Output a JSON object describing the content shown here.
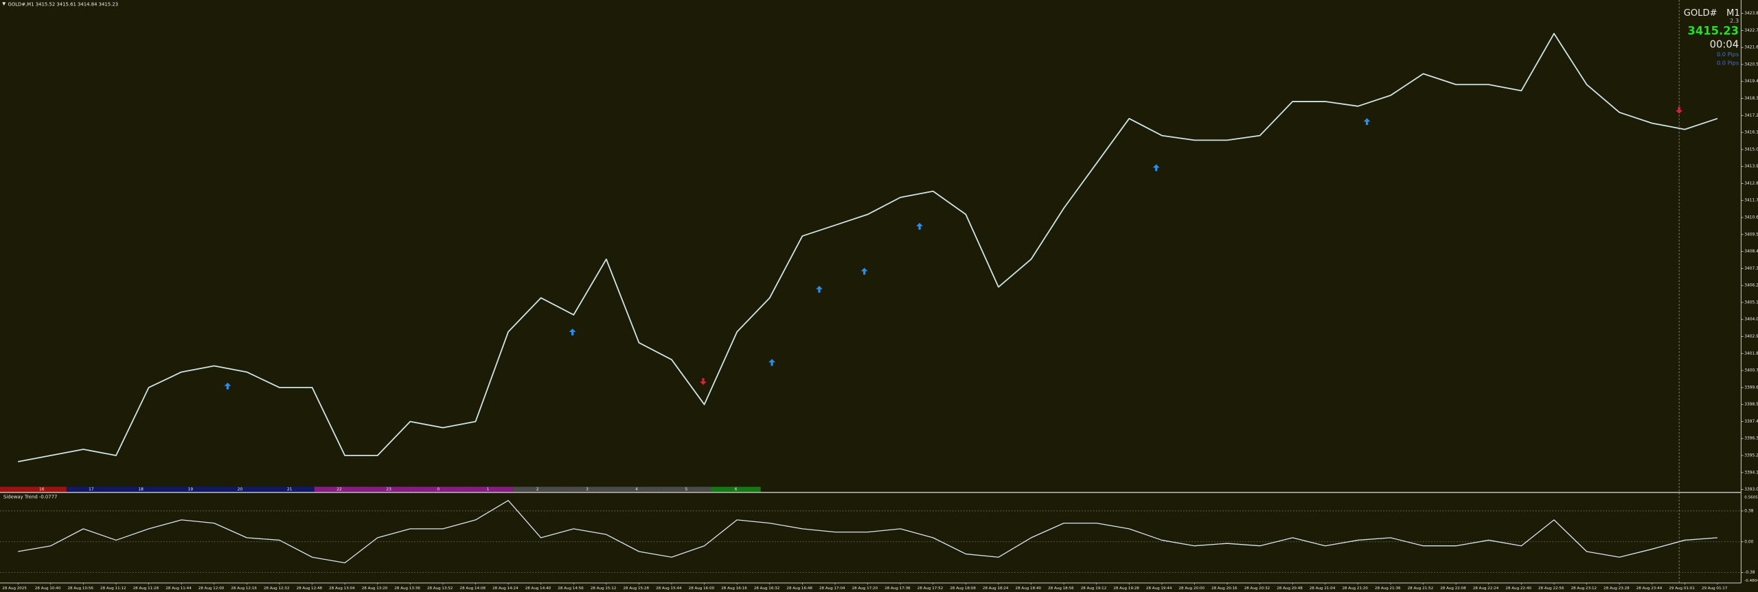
{
  "header": {
    "title": "GOLD#,M1  3415.52 3415.61 3414.84 3415.23"
  },
  "info_panel": {
    "symbol": "GOLD#",
    "period": "M1",
    "spread": "2.3",
    "price": "3415.23",
    "timer": "00:04",
    "pips": [
      "0.0 Pips",
      "0.0 Pips"
    ]
  },
  "hour_bar": [
    {
      "label": "16",
      "color": "#a01010"
    },
    {
      "label": "17",
      "color": "#10186a"
    },
    {
      "label": "18",
      "color": "#10186a"
    },
    {
      "label": "19",
      "color": "#10186a"
    },
    {
      "label": "20",
      "color": "#10186a"
    },
    {
      "label": "21",
      "color": "#10186a"
    },
    {
      "label": "22",
      "color": "#8a1a86"
    },
    {
      "label": "23",
      "color": "#8a1a86"
    },
    {
      "label": "0",
      "color": "#8a1a86"
    },
    {
      "label": "1",
      "color": "#8a1a86"
    },
    {
      "label": "2",
      "color": "#4a4a4a"
    },
    {
      "label": "3",
      "color": "#4a4a4a"
    },
    {
      "label": "4",
      "color": "#4a4a4a"
    },
    {
      "label": "5",
      "color": "#4a4a4a"
    },
    {
      "label": "6",
      "color": "#137a13"
    }
  ],
  "chart_data": [
    {
      "type": "line",
      "color": "#cfe6e6",
      "grid": false,
      "categories": [
        "28 Aug 2025",
        "28 Aug 10:40",
        "28 Aug 10:56",
        "28 Aug 11:12",
        "28 Aug 11:28",
        "28 Aug 11:44",
        "28 Aug 12:00",
        "28 Aug 12:16",
        "28 Aug 12:32",
        "28 Aug 12:48",
        "28 Aug 13:04",
        "28 Aug 13:20",
        "28 Aug 13:36",
        "28 Aug 13:52",
        "28 Aug 14:08",
        "28 Aug 14:24",
        "28 Aug 14:40",
        "28 Aug 14:56",
        "28 Aug 15:12",
        "28 Aug 15:28",
        "28 Aug 15:44",
        "28 Aug 16:00",
        "28 Aug 16:16",
        "28 Aug 16:32",
        "28 Aug 16:48",
        "28 Aug 17:04",
        "28 Aug 17:20",
        "28 Aug 17:36",
        "28 Aug 17:52",
        "28 Aug 18:08",
        "28 Aug 18:24",
        "28 Aug 18:40",
        "28 Aug 18:56",
        "28 Aug 19:12",
        "28 Aug 19:28",
        "28 Aug 19:44",
        "28 Aug 20:00",
        "28 Aug 20:16",
        "28 Aug 20:32",
        "28 Aug 20:48",
        "28 Aug 21:04",
        "28 Aug 21:20",
        "28 Aug 21:36",
        "28 Aug 21:52",
        "28 Aug 22:08",
        "28 Aug 22:24",
        "28 Aug 22:40",
        "28 Aug 22:56",
        "28 Aug 23:12",
        "28 Aug 23:28",
        "28 Aug 23:44",
        "29 Aug 01:01",
        "29 Aug 01:17"
      ],
      "values": [
        3394.8,
        3395.2,
        3395.6,
        3395.2,
        3399.6,
        3400.6,
        3401.0,
        3400.6,
        3399.6,
        3399.6,
        3395.2,
        3395.2,
        3397.4,
        3397.0,
        3397.4,
        3403.2,
        3405.4,
        3404.3,
        3407.9,
        3402.5,
        3401.4,
        3398.5,
        3403.2,
        3405.4,
        3409.4,
        3410.1,
        3410.8,
        3411.9,
        3412.3,
        3410.8,
        3406.1,
        3407.9,
        3411.2,
        3414.1,
        3417.0,
        3415.9,
        3415.6,
        3415.6,
        3415.9,
        3418.1,
        3418.1,
        3417.8,
        3418.5,
        3419.9,
        3419.2,
        3419.2,
        3418.8,
        3422.5,
        3419.2,
        3417.4,
        3416.7,
        3416.3,
        3417.0
      ],
      "ylim": [
        3392.85,
        3424.67
      ],
      "yticks": [
        {
          "value": 3423.8,
          "label": "3423.80"
        },
        {
          "value": 3422.7,
          "label": "3422.70"
        },
        {
          "value": 3421.6,
          "label": "3421.60"
        },
        {
          "value": 3420.5,
          "label": "3420.50"
        },
        {
          "value": 3419.4,
          "label": "3419.40"
        },
        {
          "value": 3418.3,
          "label": "3418.30"
        },
        {
          "value": 3417.2,
          "label": "3417.20"
        },
        {
          "value": 3416.1,
          "label": "3416.10"
        },
        {
          "value": 3415.0,
          "label": "3415.00"
        },
        {
          "value": 3413.9,
          "label": "3413.90"
        },
        {
          "value": 3412.8,
          "label": "3412.80"
        },
        {
          "value": 3411.7,
          "label": "3411.70"
        },
        {
          "value": 3410.6,
          "label": "3410.60"
        },
        {
          "value": 3409.5,
          "label": "3409.50"
        },
        {
          "value": 3408.4,
          "label": "3408.40"
        },
        {
          "value": 3407.3,
          "label": "3407.30"
        },
        {
          "value": 3406.2,
          "label": "3406.20"
        },
        {
          "value": 3405.1,
          "label": "3405.10"
        },
        {
          "value": 3404.0,
          "label": "3404.00"
        },
        {
          "value": 3402.9,
          "label": "3402.90"
        },
        {
          "value": 3401.8,
          "label": "3401.80"
        },
        {
          "value": 3400.7,
          "label": "3400.70"
        },
        {
          "value": 3399.6,
          "label": "3399.60"
        },
        {
          "value": 3398.5,
          "label": "3398.50"
        },
        {
          "value": 3397.4,
          "label": "3397.40"
        },
        {
          "value": 3396.3,
          "label": "3396.30"
        },
        {
          "value": 3395.2,
          "label": "3395.20"
        },
        {
          "value": 3394.1,
          "label": "3394.10"
        },
        {
          "value": 3393.0,
          "label": "3393.00"
        }
      ]
    },
    {
      "type": "line",
      "title": "Sideway Trend -0.0777",
      "color": "#d8e6f0",
      "grid": true,
      "values": [
        -0.12,
        -0.05,
        0.16,
        0.02,
        0.16,
        0.27,
        0.23,
        0.05,
        0.02,
        -0.19,
        -0.26,
        0.05,
        0.16,
        0.16,
        0.27,
        0.51,
        0.05,
        0.16,
        0.09,
        -0.12,
        -0.19,
        -0.05,
        0.27,
        0.23,
        0.16,
        0.12,
        0.12,
        0.16,
        0.05,
        -0.15,
        -0.19,
        0.05,
        0.23,
        0.23,
        0.16,
        0.02,
        -0.05,
        -0.02,
        -0.05,
        0.05,
        -0.05,
        0.02,
        0.05,
        -0.05,
        -0.05,
        0.02,
        -0.05,
        0.27,
        -0.12,
        -0.19,
        -0.09,
        0.02,
        0.05
      ],
      "ylim": [
        -0.4804,
        0.5605
      ],
      "yticks": [
        0.38,
        {
          "value": 0,
          "label": "0.00"
        },
        -0.38
      ]
    }
  ]
}
